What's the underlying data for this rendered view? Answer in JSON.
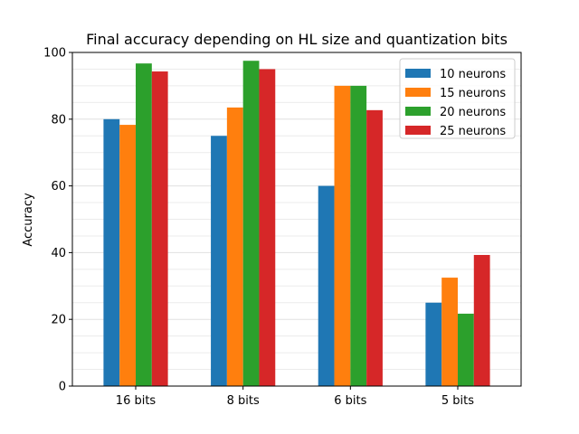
{
  "chart_data": {
    "type": "bar",
    "title": "Final accuracy depending on HL size and quantization bits",
    "xlabel": "",
    "ylabel": "Accuracy",
    "categories": [
      "16 bits",
      "8 bits",
      "6 bits",
      "5 bits"
    ],
    "series": [
      {
        "name": "10 neurons",
        "color": "#1f77b4",
        "values": [
          80,
          75,
          60,
          25
        ]
      },
      {
        "name": "15 neurons",
        "color": "#ff7f0e",
        "values": [
          78.3,
          83.5,
          90,
          32.5
        ]
      },
      {
        "name": "20 neurons",
        "color": "#2ca02c",
        "values": [
          96.7,
          97.5,
          90,
          21.7
        ]
      },
      {
        "name": "25 neurons",
        "color": "#d62728",
        "values": [
          94.3,
          95,
          82.7,
          39.3
        ]
      }
    ],
    "ylim": [
      0,
      100
    ],
    "yticks": [
      0,
      20,
      40,
      60,
      80,
      100
    ],
    "minor_grid_step": 5,
    "grid": true,
    "legend_position": "top-right"
  }
}
